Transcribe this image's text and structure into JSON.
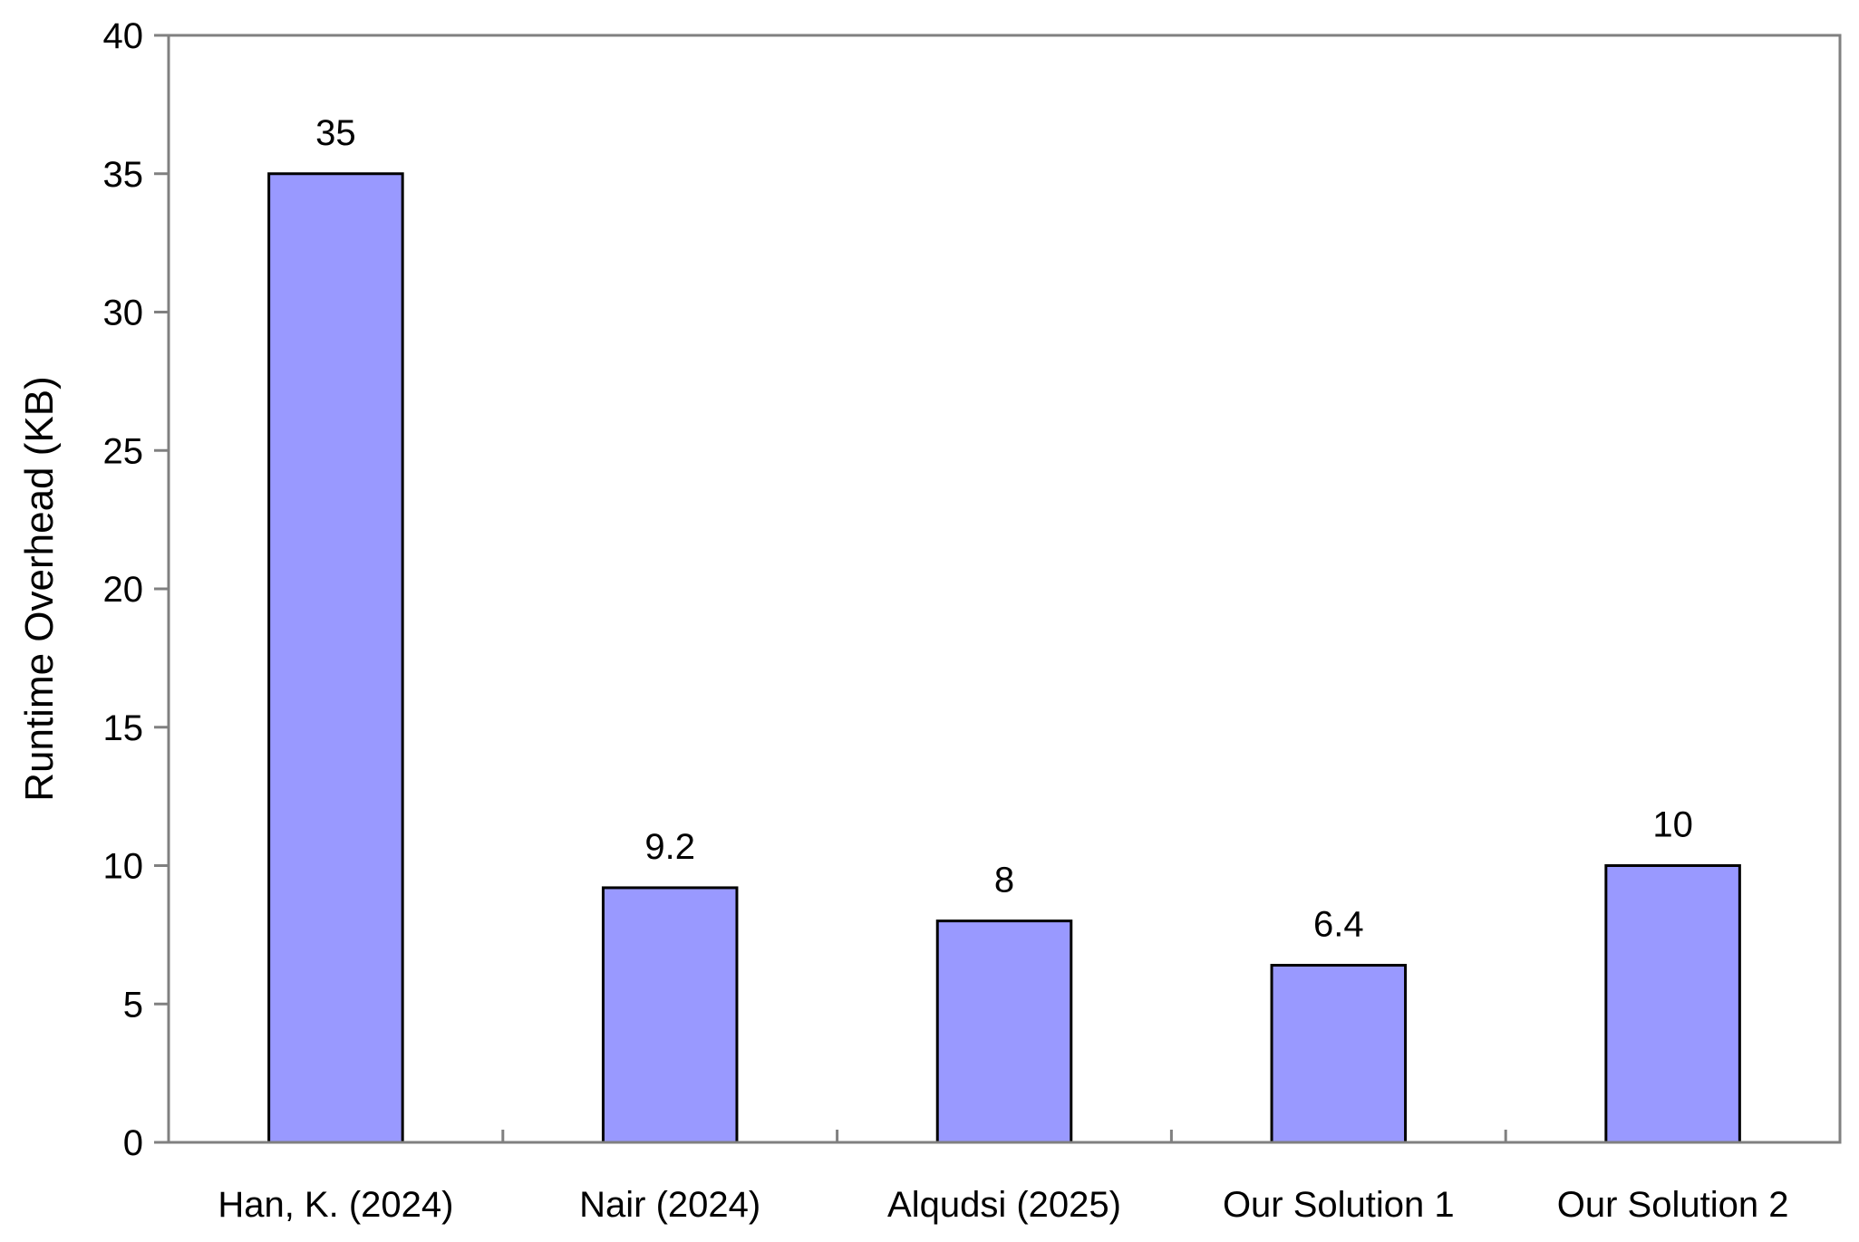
{
  "chart_data": {
    "type": "bar",
    "title": "",
    "xlabel": "",
    "ylabel": "Runtime Overhead (KB)",
    "categories": [
      "Han, K. (2024)",
      "Nair (2024)",
      "Alqudsi (2025)",
      "Our Solution 1",
      "Our Solution 2"
    ],
    "values": [
      35,
      9.2,
      8,
      6.4,
      10
    ],
    "data_labels": [
      "35",
      "9.2",
      "8",
      "6.4",
      "10"
    ],
    "ylim": [
      0,
      40
    ],
    "yticks": [
      0,
      5,
      10,
      15,
      20,
      25,
      30,
      35,
      40
    ],
    "ytick_labels": [
      "0",
      "5",
      "10",
      "15",
      "20",
      "25",
      "30",
      "35",
      "40"
    ],
    "grid": false,
    "legend": "none",
    "colors": {
      "bar_fill": "#9999FF",
      "bar_stroke": "#000000",
      "axis": "#808080"
    }
  }
}
